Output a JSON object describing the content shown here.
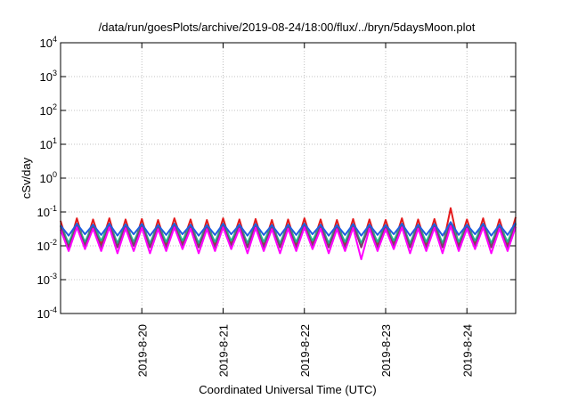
{
  "chart_data": {
    "type": "line",
    "title": "/data/run/goesPlots/archive/2019-08-24/18:00/flux/../bryn/5daysMoon.plot",
    "xlabel": "Coordinated Universal Time (UTC)",
    "ylabel": "cSv/day",
    "yscale": "log",
    "ylim": [
      0.0001,
      10000
    ],
    "xlim": [
      0,
      5.6
    ],
    "grid": true,
    "x_ticks": [
      {
        "label": "2019-8-20",
        "value": 1
      },
      {
        "label": "2019-8-21",
        "value": 2
      },
      {
        "label": "2019-8-22",
        "value": 3
      },
      {
        "label": "2019-8-23",
        "value": 4
      },
      {
        "label": "2019-8-24",
        "value": 5
      }
    ],
    "y_ticks": [
      {
        "base": "10",
        "exp": "-4",
        "value": 0.0001
      },
      {
        "base": "10",
        "exp": "-3",
        "value": 0.001
      },
      {
        "base": "10",
        "exp": "-2",
        "value": 0.01
      },
      {
        "base": "10",
        "exp": "-1",
        "value": 0.1
      },
      {
        "base": "10",
        "exp": "0",
        "value": 1
      },
      {
        "base": "10",
        "exp": "1",
        "value": 10
      },
      {
        "base": "10",
        "exp": "2",
        "value": 100
      },
      {
        "base": "10",
        "exp": "3",
        "value": 1000
      },
      {
        "base": "10",
        "exp": "4",
        "value": 10000
      }
    ],
    "series": [
      {
        "color": "#e41a1c",
        "values": [
          0.055,
          0.009,
          0.065,
          0.01,
          0.06,
          0.011,
          0.065,
          0.009,
          0.06,
          0.01,
          0.062,
          0.009,
          0.058,
          0.01,
          0.065,
          0.012,
          0.06,
          0.009,
          0.058,
          0.01,
          0.065,
          0.011,
          0.06,
          0.009,
          0.062,
          0.01,
          0.058,
          0.009,
          0.06,
          0.01,
          0.065,
          0.011,
          0.06,
          0.009,
          0.058,
          0.01,
          0.062,
          0.009,
          0.06,
          0.01,
          0.058,
          0.011,
          0.065,
          0.009,
          0.06,
          0.01,
          0.062,
          0.009,
          0.13,
          0.01,
          0.06,
          0.011,
          0.065,
          0.009,
          0.06,
          0.01,
          0.07
        ]
      },
      {
        "color": "#1bb88a",
        "values": [
          0.04,
          0.012,
          0.045,
          0.013,
          0.042,
          0.014,
          0.045,
          0.012,
          0.043,
          0.013,
          0.044,
          0.012,
          0.041,
          0.013,
          0.045,
          0.014,
          0.042,
          0.012,
          0.041,
          0.013,
          0.045,
          0.014,
          0.042,
          0.012,
          0.044,
          0.013,
          0.041,
          0.012,
          0.042,
          0.013,
          0.045,
          0.014,
          0.042,
          0.012,
          0.041,
          0.013,
          0.044,
          0.012,
          0.042,
          0.013,
          0.041,
          0.014,
          0.045,
          0.012,
          0.042,
          0.013,
          0.044,
          0.012,
          0.05,
          0.013,
          0.042,
          0.014,
          0.045,
          0.012,
          0.042,
          0.013,
          0.046
        ]
      },
      {
        "color": "#7b3f6e",
        "values": [
          0.038,
          0.009,
          0.042,
          0.01,
          0.04,
          0.009,
          0.043,
          0.009,
          0.04,
          0.01,
          0.042,
          0.009,
          0.039,
          0.009,
          0.043,
          0.01,
          0.04,
          0.009,
          0.039,
          0.009,
          0.043,
          0.01,
          0.04,
          0.009,
          0.042,
          0.009,
          0.039,
          0.009,
          0.04,
          0.009,
          0.043,
          0.01,
          0.04,
          0.009,
          0.039,
          0.009,
          0.042,
          0.009,
          0.04,
          0.009,
          0.039,
          0.01,
          0.043,
          0.009,
          0.04,
          0.009,
          0.042,
          0.009,
          0.048,
          0.009,
          0.04,
          0.01,
          0.043,
          0.009,
          0.04,
          0.009,
          0.044
        ]
      },
      {
        "color": "#ff00ff",
        "values": [
          0.03,
          0.007,
          0.035,
          0.008,
          0.032,
          0.007,
          0.035,
          0.006,
          0.033,
          0.007,
          0.034,
          0.006,
          0.031,
          0.007,
          0.035,
          0.008,
          0.032,
          0.006,
          0.031,
          0.007,
          0.035,
          0.008,
          0.032,
          0.006,
          0.034,
          0.007,
          0.031,
          0.006,
          0.032,
          0.007,
          0.035,
          0.008,
          0.032,
          0.006,
          0.031,
          0.007,
          0.034,
          0.004,
          0.032,
          0.007,
          0.031,
          0.008,
          0.035,
          0.006,
          0.032,
          0.007,
          0.034,
          0.006,
          0.038,
          0.007,
          0.032,
          0.008,
          0.035,
          0.006,
          0.032,
          0.007,
          0.036
        ]
      },
      {
        "color": "#1f5fe0",
        "values": [
          0.04,
          0.02,
          0.045,
          0.022,
          0.042,
          0.021,
          0.045,
          0.02,
          0.043,
          0.022,
          0.044,
          0.02,
          0.041,
          0.021,
          0.045,
          0.022,
          0.042,
          0.02,
          0.041,
          0.021,
          0.045,
          0.022,
          0.042,
          0.02,
          0.044,
          0.021,
          0.041,
          0.02,
          0.042,
          0.021,
          0.045,
          0.022,
          0.042,
          0.02,
          0.041,
          0.021,
          0.044,
          0.02,
          0.042,
          0.021,
          0.041,
          0.022,
          0.045,
          0.02,
          0.042,
          0.021,
          0.044,
          0.02,
          0.05,
          0.021,
          0.042,
          0.022,
          0.045,
          0.02,
          0.042,
          0.021,
          0.048
        ]
      }
    ]
  }
}
